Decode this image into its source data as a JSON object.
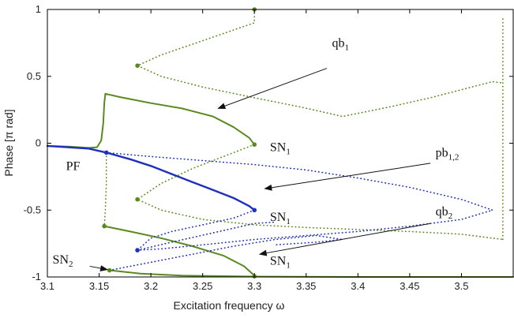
{
  "chart_data": {
    "type": "line",
    "xlabel": "Excitation frequency ω",
    "ylabel": "Phase [π rad]",
    "xlim": [
      3.1,
      3.55
    ],
    "ylim": [
      -1,
      1
    ],
    "xticks": [
      "3.1",
      "3.15",
      "3.2",
      "3.25",
      "3.3",
      "3.35",
      "3.4",
      "3.45",
      "3.5"
    ],
    "yticks": [
      "1",
      "0.5",
      "0",
      "-0.5",
      "-1"
    ],
    "grid": false,
    "colors": {
      "green": "#5a8a1e",
      "blue": "#1f2fbf",
      "annotation": "#111111"
    },
    "series": [
      {
        "style": "solid",
        "color": "green",
        "points": [
          [
            3.1,
            -0.02
          ],
          [
            3.12,
            -0.025
          ],
          [
            3.14,
            -0.035
          ],
          [
            3.148,
            -0.03
          ],
          [
            3.152,
            0.02
          ],
          [
            3.154,
            0.15
          ],
          [
            3.155,
            0.3
          ],
          [
            3.156,
            0.37
          ],
          [
            3.17,
            0.345
          ],
          [
            3.2,
            0.3
          ],
          [
            3.23,
            0.26
          ],
          [
            3.26,
            0.2
          ],
          [
            3.28,
            0.12
          ],
          [
            3.295,
            0.04
          ],
          [
            3.3,
            -0.01
          ]
        ]
      },
      {
        "style": "solid",
        "color": "blue",
        "points": [
          [
            3.1,
            -0.02
          ],
          [
            3.14,
            -0.04
          ],
          [
            3.157,
            -0.07
          ],
          [
            3.18,
            -0.12
          ],
          [
            3.2,
            -0.17
          ],
          [
            3.22,
            -0.23
          ],
          [
            3.24,
            -0.29
          ],
          [
            3.26,
            -0.35
          ],
          [
            3.28,
            -0.41
          ],
          [
            3.295,
            -0.47
          ],
          [
            3.3,
            -0.5
          ]
        ]
      },
      {
        "style": "solid",
        "color": "green",
        "points": [
          [
            3.155,
            -0.62
          ],
          [
            3.18,
            -0.66
          ],
          [
            3.21,
            -0.71
          ],
          [
            3.24,
            -0.77
          ],
          [
            3.27,
            -0.84
          ],
          [
            3.29,
            -0.92
          ],
          [
            3.3,
            -0.99
          ]
        ]
      },
      {
        "style": "solid",
        "color": "green",
        "points": [
          [
            3.16,
            -0.95
          ],
          [
            3.19,
            -0.975
          ],
          [
            3.23,
            -0.99
          ],
          [
            3.3,
            -0.997
          ],
          [
            3.4,
            -1.0
          ],
          [
            3.55,
            -1.0
          ]
        ]
      },
      {
        "style": "dotted",
        "color": "green",
        "points": [
          [
            3.3,
            1.0
          ],
          [
            3.3,
            0.9
          ],
          [
            3.27,
            0.82
          ],
          [
            3.24,
            0.74
          ],
          [
            3.21,
            0.66
          ],
          [
            3.187,
            0.58
          ],
          [
            3.21,
            0.5
          ],
          [
            3.25,
            0.42
          ],
          [
            3.3,
            0.34
          ],
          [
            3.345,
            0.27
          ],
          [
            3.385,
            0.2
          ],
          [
            3.43,
            0.27
          ],
          [
            3.47,
            0.34
          ],
          [
            3.5,
            0.4
          ],
          [
            3.53,
            0.46
          ],
          [
            3.54,
            0.45
          ]
        ]
      },
      {
        "style": "dotted",
        "color": "green",
        "points": [
          [
            3.157,
            -0.07
          ],
          [
            3.157,
            -0.3
          ],
          [
            3.156,
            -0.5
          ],
          [
            3.155,
            -0.62
          ]
        ]
      },
      {
        "style": "dotted",
        "color": "green",
        "points": [
          [
            3.3,
            -0.01
          ],
          [
            3.27,
            -0.1
          ],
          [
            3.24,
            -0.19
          ],
          [
            3.21,
            -0.3
          ],
          [
            3.187,
            -0.42
          ],
          [
            3.21,
            -0.5
          ],
          [
            3.25,
            -0.57
          ],
          [
            3.3,
            -0.61
          ],
          [
            3.35,
            -0.63
          ],
          [
            3.4,
            -0.645
          ],
          [
            3.45,
            -0.66
          ],
          [
            3.5,
            -0.68
          ],
          [
            3.54,
            -0.72
          ]
        ]
      },
      {
        "style": "dotted",
        "color": "green",
        "points": [
          [
            3.54,
            0.93
          ],
          [
            3.54,
            0.5
          ],
          [
            3.54,
            0.0
          ],
          [
            3.54,
            -0.5
          ],
          [
            3.54,
            -0.73
          ]
        ]
      },
      {
        "style": "dotted",
        "color": "blue",
        "points": [
          [
            3.157,
            -0.07
          ],
          [
            3.2,
            -0.1
          ],
          [
            3.25,
            -0.13
          ],
          [
            3.3,
            -0.16
          ],
          [
            3.35,
            -0.2
          ],
          [
            3.4,
            -0.26
          ],
          [
            3.45,
            -0.33
          ],
          [
            3.5,
            -0.42
          ],
          [
            3.53,
            -0.5
          ],
          [
            3.5,
            -0.57
          ],
          [
            3.45,
            -0.62
          ],
          [
            3.4,
            -0.66
          ],
          [
            3.35,
            -0.69
          ],
          [
            3.3,
            -0.72
          ],
          [
            3.25,
            -0.76
          ],
          [
            3.21,
            -0.79
          ],
          [
            3.187,
            -0.8
          ]
        ]
      },
      {
        "style": "dotted",
        "color": "blue",
        "points": [
          [
            3.3,
            -0.5
          ],
          [
            3.28,
            -0.56
          ],
          [
            3.25,
            -0.61
          ],
          [
            3.22,
            -0.66
          ],
          [
            3.2,
            -0.71
          ],
          [
            3.187,
            -0.8
          ]
        ]
      },
      {
        "style": "dotted",
        "color": "blue",
        "points": [
          [
            3.16,
            -0.95
          ],
          [
            3.2,
            -0.89
          ],
          [
            3.24,
            -0.83
          ],
          [
            3.28,
            -0.77
          ],
          [
            3.32,
            -0.72
          ],
          [
            3.36,
            -0.69
          ],
          [
            3.385,
            -0.72
          ],
          [
            3.36,
            -0.74
          ],
          [
            3.32,
            -0.76
          ]
        ]
      },
      {
        "style": "dotted",
        "color": "blue",
        "points": [
          [
            3.187,
            -0.8
          ],
          [
            3.22,
            -0.74
          ],
          [
            3.26,
            -0.67
          ],
          [
            3.3,
            -0.6
          ],
          [
            3.32,
            -0.59
          ]
        ]
      }
    ],
    "markers": [
      {
        "x": 3.3,
        "y": 1.0,
        "color": "green"
      },
      {
        "x": 3.187,
        "y": 0.58,
        "color": "green"
      },
      {
        "x": 3.3,
        "y": -0.01,
        "color": "green"
      },
      {
        "x": 3.187,
        "y": -0.42,
        "color": "green"
      },
      {
        "x": 3.155,
        "y": -0.62,
        "color": "green"
      },
      {
        "x": 3.16,
        "y": -0.95,
        "color": "green"
      },
      {
        "x": 3.3,
        "y": -0.995,
        "color": "green"
      },
      {
        "x": 3.157,
        "y": -0.07,
        "color": "blue"
      },
      {
        "x": 3.3,
        "y": -0.5,
        "color": "blue"
      },
      {
        "x": 3.187,
        "y": -0.8,
        "color": "blue"
      }
    ],
    "annotations": [
      {
        "name": "label-qb1",
        "main": "qb",
        "sub": "1",
        "x": 3.375,
        "y": 0.72,
        "arrow": [
          3.37,
          0.56,
          3.265,
          0.26
        ]
      },
      {
        "name": "label-pb12",
        "main": "pb",
        "sub": "1,2",
        "x": 3.475,
        "y": -0.1,
        "arrow": [
          3.47,
          -0.15,
          3.31,
          -0.34
        ]
      },
      {
        "name": "label-qb2",
        "main": "qb",
        "sub": "2",
        "x": 3.475,
        "y": -0.54,
        "arrow": [
          3.47,
          -0.6,
          3.305,
          -0.83
        ]
      },
      {
        "name": "label-pf",
        "main": "PF",
        "sub": "",
        "x": 3.118,
        "y": -0.2,
        "arrow": null
      },
      {
        "name": "label-sn1-top",
        "main": "SN",
        "sub": "1",
        "x": 3.315,
        "y": -0.06,
        "arrow": null
      },
      {
        "name": "label-sn1-mid",
        "main": "SN",
        "sub": "1",
        "x": 3.315,
        "y": -0.58,
        "arrow": null
      },
      {
        "name": "label-sn1-bottom",
        "main": "SN",
        "sub": "1",
        "x": 3.315,
        "y": -0.91,
        "arrow": null
      },
      {
        "name": "label-sn2",
        "main": "SN",
        "sub": "2",
        "x": 3.105,
        "y": -0.9,
        "arrow": [
          3.141,
          -0.92,
          3.158,
          -0.945
        ]
      }
    ]
  }
}
